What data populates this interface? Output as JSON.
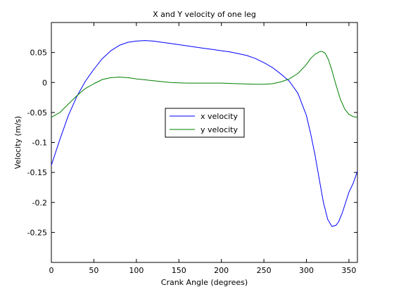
{
  "figure": {
    "background": "#ffffff"
  },
  "chart_data": {
    "type": "line",
    "title": "X and Y velocity of one leg",
    "xlabel": "Crank Angle (degrees)",
    "ylabel": "Velocity (m/s)",
    "xlim": [
      0,
      360
    ],
    "ylim": [
      -0.3,
      0.1
    ],
    "xticks": [
      0,
      50,
      100,
      150,
      200,
      250,
      300,
      350
    ],
    "xtick_labels": [
      "0",
      "50",
      "100",
      "150",
      "200",
      "250",
      "300",
      "350"
    ],
    "yticks": [
      -0.25,
      -0.2,
      -0.15,
      -0.1,
      -0.05,
      0,
      0.05
    ],
    "ytick_labels": [
      "-0.25",
      "-0.2",
      "-0.15",
      "-0.1",
      "-0.05",
      "0",
      "0.05"
    ],
    "grid": false,
    "legend_position": "center",
    "series": [
      {
        "name": "x velocity",
        "color": "#0000ff",
        "x": [
          0,
          10,
          20,
          30,
          40,
          50,
          60,
          70,
          80,
          90,
          100,
          110,
          120,
          130,
          140,
          150,
          160,
          170,
          180,
          190,
          200,
          210,
          220,
          230,
          240,
          250,
          260,
          270,
          280,
          290,
          300,
          305,
          310,
          315,
          320,
          325,
          330,
          335,
          338,
          342,
          345,
          350,
          355,
          360
        ],
        "y": [
          -0.138,
          -0.095,
          -0.055,
          -0.023,
          0.002,
          0.022,
          0.04,
          0.053,
          0.062,
          0.067,
          0.069,
          0.07,
          0.069,
          0.067,
          0.065,
          0.063,
          0.061,
          0.059,
          0.057,
          0.055,
          0.053,
          0.051,
          0.048,
          0.045,
          0.04,
          0.033,
          0.025,
          0.014,
          0.002,
          -0.018,
          -0.055,
          -0.085,
          -0.12,
          -0.16,
          -0.2,
          -0.228,
          -0.24,
          -0.238,
          -0.232,
          -0.218,
          -0.205,
          -0.183,
          -0.168,
          -0.148
        ]
      },
      {
        "name": "y velocity",
        "color": "#008000",
        "x": [
          0,
          10,
          20,
          30,
          40,
          50,
          60,
          70,
          80,
          90,
          100,
          120,
          140,
          160,
          180,
          200,
          220,
          240,
          250,
          260,
          270,
          280,
          290,
          300,
          305,
          310,
          315,
          318,
          322,
          326,
          330,
          335,
          340,
          345,
          350,
          355,
          360
        ],
        "y": [
          -0.058,
          -0.05,
          -0.036,
          -0.022,
          -0.01,
          -0.002,
          0.005,
          0.008,
          0.009,
          0.008,
          0.006,
          0.003,
          0.0,
          -0.001,
          -0.001,
          -0.001,
          -0.002,
          -0.003,
          -0.003,
          -0.002,
          0.001,
          0.006,
          0.015,
          0.03,
          0.04,
          0.047,
          0.051,
          0.052,
          0.049,
          0.038,
          0.02,
          -0.005,
          -0.028,
          -0.044,
          -0.053,
          -0.057,
          -0.058
        ]
      }
    ]
  }
}
